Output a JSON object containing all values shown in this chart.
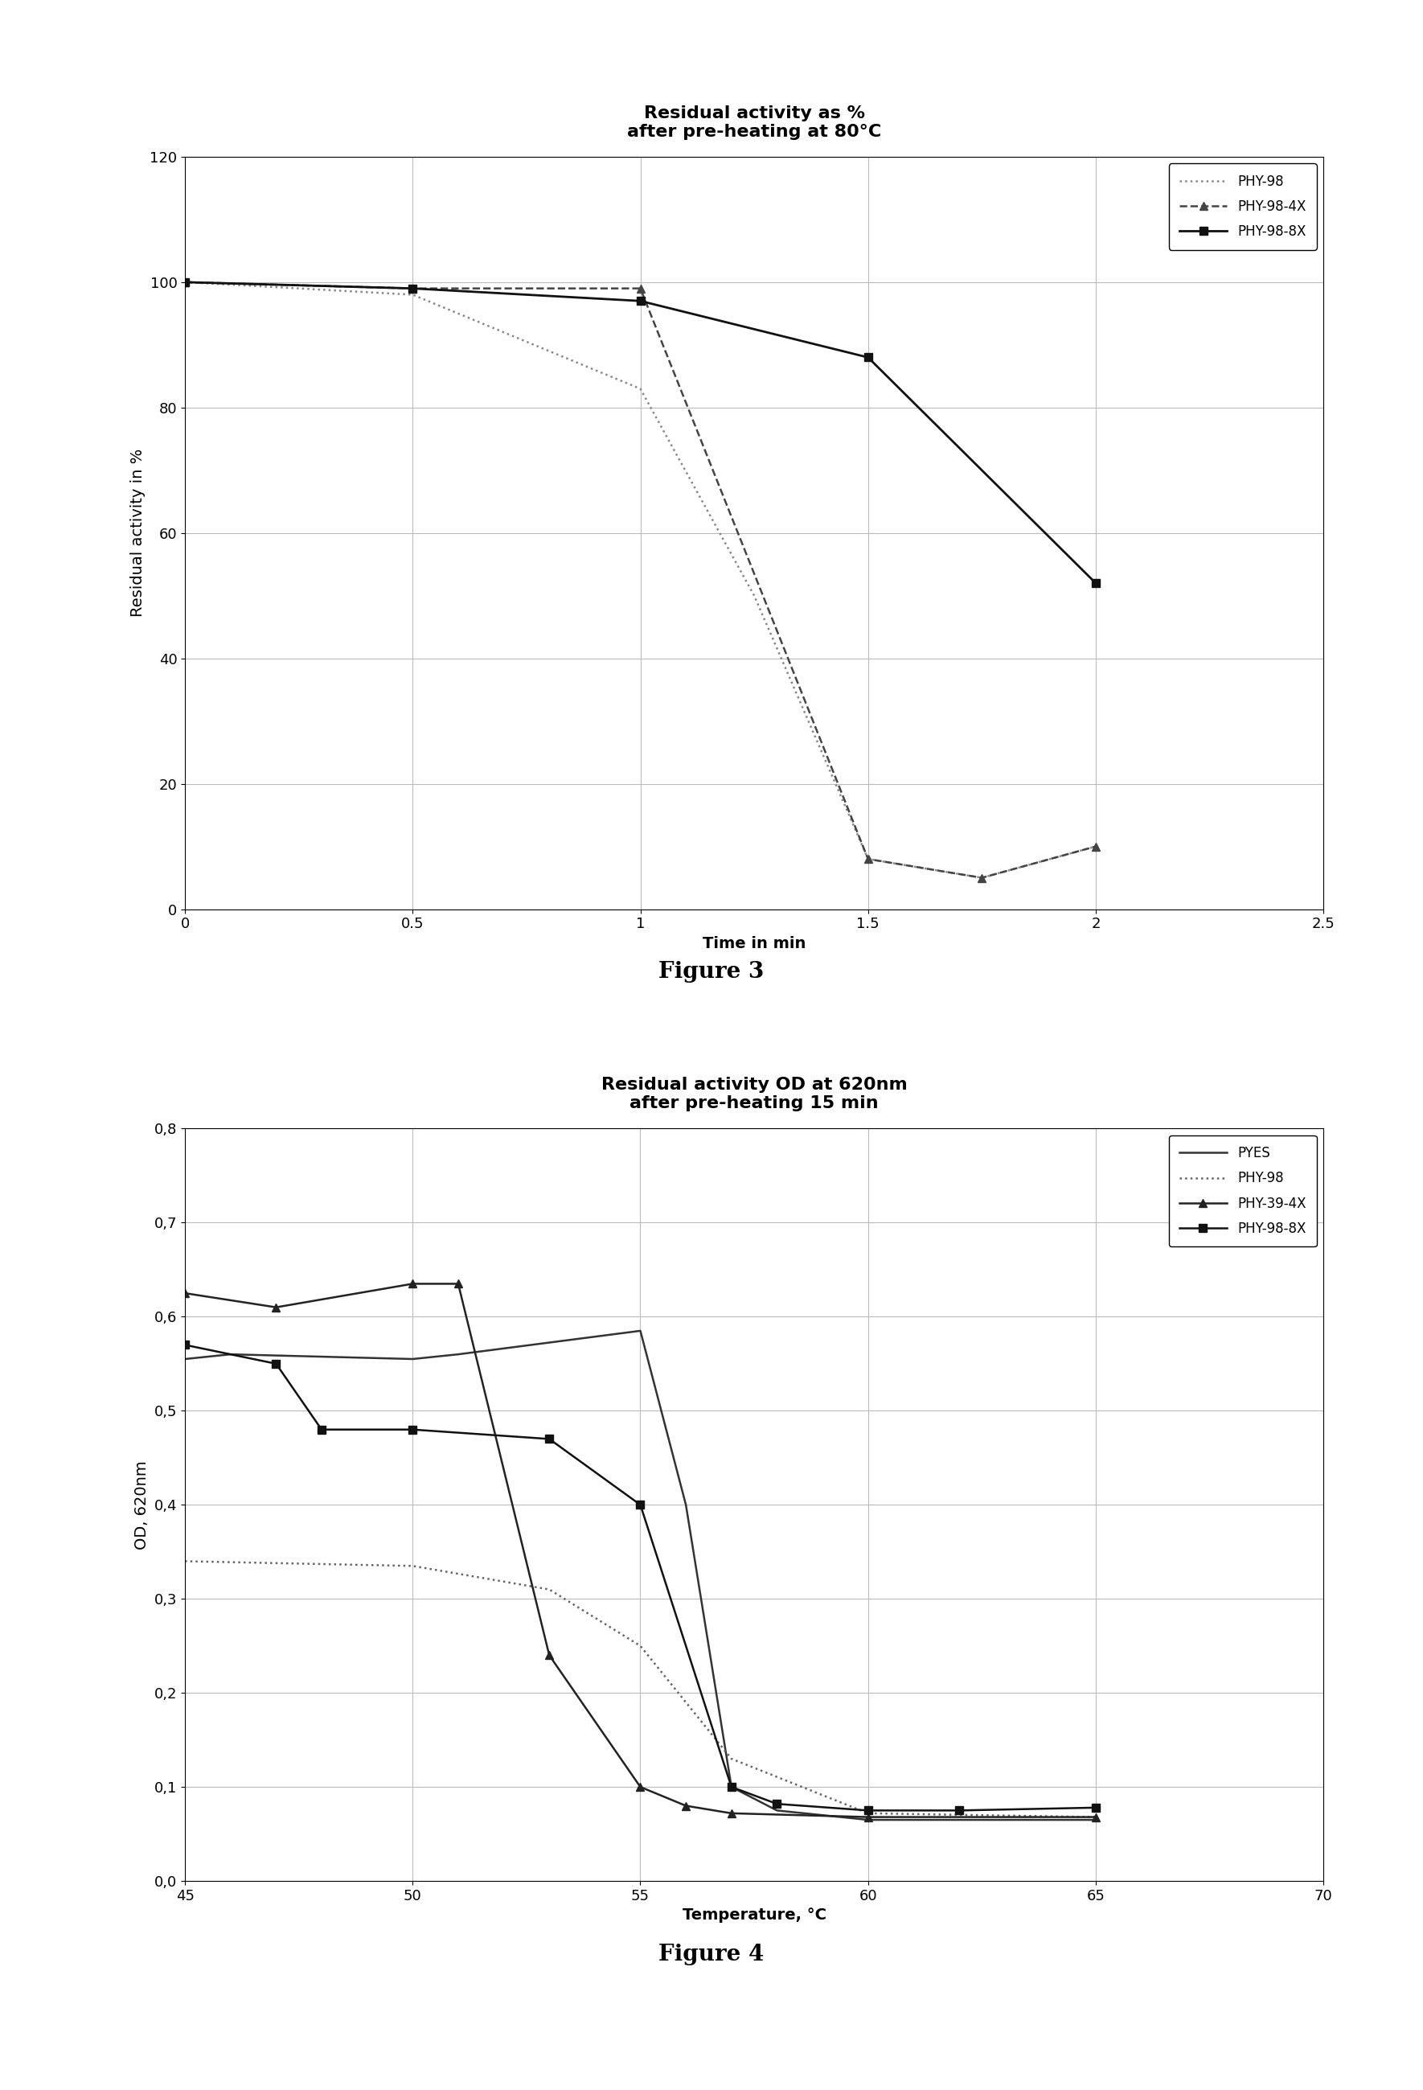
{
  "fig3": {
    "title": "Residual activity as %\nafter pre-heating at 80°C",
    "xlabel": "Time in min",
    "ylabel": "Residual activity in %",
    "xlim": [
      0,
      2.5
    ],
    "ylim": [
      0,
      120
    ],
    "xticks": [
      0,
      0.5,
      1.0,
      1.5,
      2.0,
      2.5
    ],
    "xticklabels": [
      "0",
      "0.5",
      "1",
      "1.5",
      "2",
      "2.5"
    ],
    "yticks": [
      0,
      20,
      40,
      60,
      80,
      100,
      120
    ],
    "yticklabels": [
      "0",
      "20",
      "40",
      "60",
      "80",
      "100",
      "120"
    ],
    "series": [
      {
        "label": "PHY-98",
        "x": [
          0,
          0.5,
          1.0,
          1.25,
          1.5,
          1.75,
          2.0
        ],
        "y": [
          100,
          98,
          83,
          50,
          8,
          5,
          10
        ],
        "color": "#888888",
        "linestyle": "dotted",
        "marker": null,
        "markersize": 0,
        "linewidth": 1.8
      },
      {
        "label": "PHY-98-4X",
        "x": [
          0,
          0.5,
          1.0,
          1.5,
          1.75,
          2.0
        ],
        "y": [
          100,
          99,
          99,
          8,
          5,
          10
        ],
        "color": "#444444",
        "linestyle": "dashed",
        "marker": "^",
        "markersize": 7,
        "linewidth": 1.8
      },
      {
        "label": "PHY-98-8X",
        "x": [
          0,
          0.5,
          1.0,
          1.5,
          2.0
        ],
        "y": [
          100,
          99,
          97,
          88,
          52
        ],
        "color": "#111111",
        "linestyle": "solid",
        "marker": "s",
        "markersize": 7,
        "linewidth": 2.0
      }
    ]
  },
  "fig4": {
    "title": "Residual activity OD at 620nm\nafter pre-heating 15 min",
    "xlabel": "Temperature, °C",
    "ylabel": "OD, 620nm",
    "xlim": [
      45,
      70
    ],
    "ylim": [
      0.0,
      0.8
    ],
    "xticks": [
      45,
      50,
      55,
      60,
      65,
      70
    ],
    "xticklabels": [
      "45",
      "50",
      "55",
      "60",
      "65",
      "70"
    ],
    "yticks": [
      0.0,
      0.1,
      0.2,
      0.3,
      0.4,
      0.5,
      0.6,
      0.7,
      0.8
    ],
    "yticklabels": [
      "0,0",
      "0,1",
      "0,2",
      "0,3",
      "0,4",
      "0,5",
      "0,6",
      "0,7",
      "0,8"
    ],
    "series": [
      {
        "label": "PYES",
        "x": [
          45,
          46,
          50,
          51,
          55,
          56,
          57,
          58,
          60,
          65
        ],
        "y": [
          0.555,
          0.56,
          0.555,
          0.56,
          0.585,
          0.4,
          0.1,
          0.075,
          0.065,
          0.065
        ],
        "color": "#333333",
        "linestyle": "solid",
        "marker": null,
        "markersize": 0,
        "linewidth": 1.8
      },
      {
        "label": "PHY-98",
        "x": [
          45,
          50,
          53,
          55,
          57,
          60,
          65
        ],
        "y": [
          0.34,
          0.335,
          0.31,
          0.25,
          0.13,
          0.072,
          0.068
        ],
        "color": "#666666",
        "linestyle": "dotted",
        "marker": null,
        "markersize": 0,
        "linewidth": 1.8
      },
      {
        "label": "PHY-39-4X",
        "x": [
          45,
          47,
          50,
          51,
          53,
          55,
          56,
          57,
          60,
          65
        ],
        "y": [
          0.625,
          0.61,
          0.635,
          0.635,
          0.24,
          0.1,
          0.08,
          0.072,
          0.068,
          0.068
        ],
        "color": "#222222",
        "linestyle": "solid",
        "marker": "^",
        "markersize": 7,
        "linewidth": 1.8
      },
      {
        "label": "PHY-98-8X",
        "x": [
          45,
          47,
          48,
          50,
          53,
          55,
          57,
          58,
          60,
          62,
          65
        ],
        "y": [
          0.57,
          0.55,
          0.48,
          0.48,
          0.47,
          0.4,
          0.1,
          0.082,
          0.075,
          0.075,
          0.078
        ],
        "color": "#111111",
        "linestyle": "solid",
        "marker": "s",
        "markersize": 7,
        "linewidth": 1.8
      }
    ]
  },
  "figure3_caption": "Figure 3",
  "figure4_caption": "Figure 4",
  "bg_color": "#ffffff",
  "title_fontsize": 16,
  "label_fontsize": 14,
  "tick_fontsize": 13,
  "legend_fontsize": 12,
  "caption_fontsize": 20
}
